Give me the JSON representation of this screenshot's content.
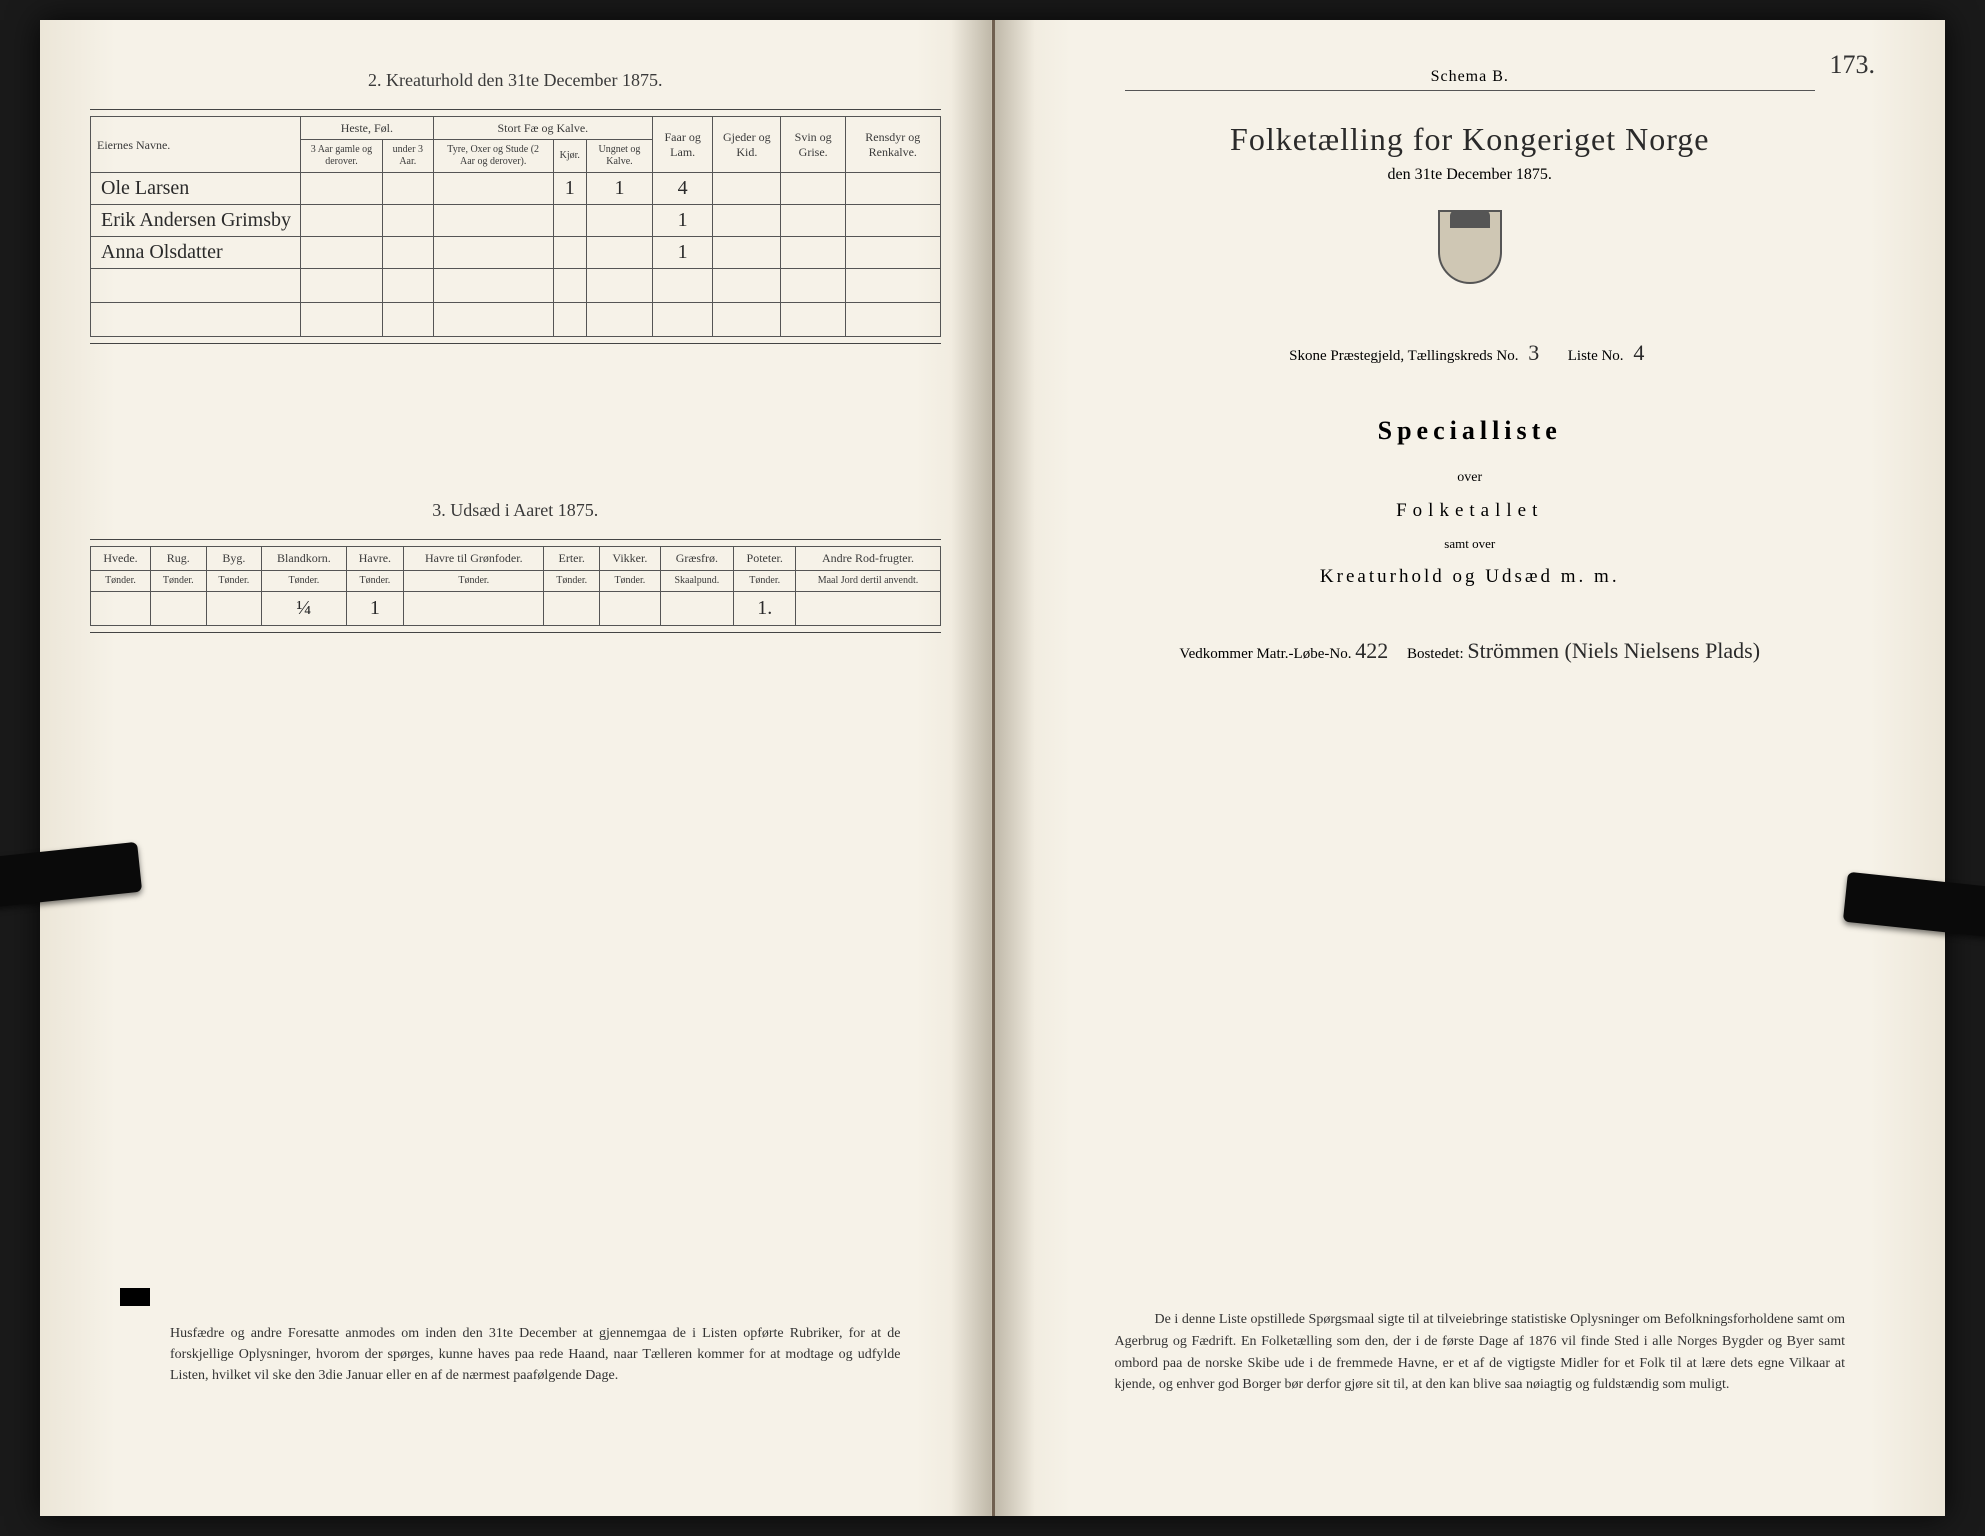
{
  "left": {
    "section2_title": "2.  Kreaturhold den 31te December 1875.",
    "table2": {
      "head": {
        "names": "Eiernes Navne.",
        "group_heste": "Heste, Føl.",
        "group_fae": "Stort Fæ og Kalve.",
        "faar": "Faar og Lam.",
        "gjeder": "Gjeder og Kid.",
        "svin": "Svin og Grise.",
        "rensdyr": "Rensdyr og Renkalve.",
        "h_sub1": "3 Aar gamle og derover.",
        "h_sub2": "under 3 Aar.",
        "f_sub1": "Tyre, Oxer og Stude (2 Aar og derover).",
        "f_sub2": "Kjør.",
        "f_sub3": "Ungnet og Kalve."
      },
      "rows": [
        {
          "name": "Ole Larsen",
          "kjor": "1",
          "ung": "1",
          "faar": "4"
        },
        {
          "name": "Erik Andersen Grimsby",
          "faar": "1"
        },
        {
          "name": "Anna Olsdatter",
          "faar": "1"
        }
      ]
    },
    "section3_title": "3.  Udsæd i Aaret 1875.",
    "table3": {
      "head": {
        "hvede": "Hvede.",
        "rug": "Rug.",
        "byg": "Byg.",
        "blandkorn": "Blandkorn.",
        "havre": "Havre.",
        "havregr": "Havre til Grønfoder.",
        "erter": "Erter.",
        "vikker": "Vikker.",
        "graesfro": "Græsfrø.",
        "poteter": "Poteter.",
        "andre": "Andre Rod-frugter.",
        "unit_tonder": "Tønder.",
        "unit_skaal": "Skaalpund.",
        "unit_maal": "Maal Jord dertil anvendt."
      },
      "row": {
        "blandkorn": "¼",
        "havre": "1",
        "poteter": "1."
      }
    },
    "footnote": "Husfædre og andre Foresatte anmodes om inden den 31te December at gjennemgaa de i Listen opførte Rubriker, for at de forskjellige Oplysninger, hvorom der spørges, kunne haves paa rede Haand, naar Tælleren kommer for at modtage og udfylde Listen, hvilket vil ske den 3die Januar eller en af de nærmest paafølgende Dage."
  },
  "right": {
    "page_number": "173.",
    "schema": "Schema B.",
    "title": "Folketælling for Kongeriget Norge",
    "date": "den 31te December 1875.",
    "meta": {
      "prefix": "Skone Præstegjeld, Tællingskreds No.",
      "kreds": "3",
      "liste_label": "Liste No.",
      "liste": "4"
    },
    "special": "Specialliste",
    "over": "over",
    "folketallet": "Folketallet",
    "samtover": "samt over",
    "kreatur": "Kreaturhold og Udsæd m. m.",
    "vedkommer": {
      "label1": "Vedkommer Matr.-Løbe-No.",
      "matr": "422",
      "label2": "Bostedet:",
      "bosted": "Strömmen (Niels Nielsens Plads)"
    },
    "bottom": "De i denne Liste opstillede Spørgsmaal sigte til at tilveiebringe statistiske Oplysninger om Befolkningsforholdene samt om Agerbrug og Fædrift.  En Folketælling som den, der i de første Dage af 1876 vil finde Sted i alle Norges Bygder og Byer samt ombord paa de norske Skibe ude i de fremmede Havne, er et af de vigtigste Midler for et Folk til at lære dets egne Vilkaar at kjende, og enhver god Borger bør derfor gjøre sit til, at den kan blive saa nøiagtig og fuldstændig som muligt."
  }
}
